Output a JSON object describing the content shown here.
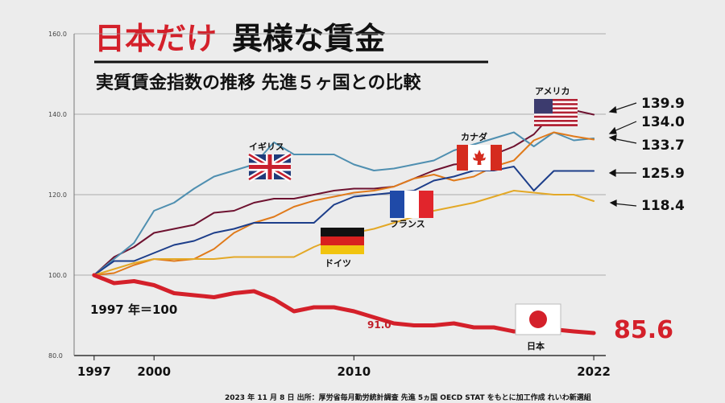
{
  "header": {
    "title_red": "日本だけ",
    "title_black": "異様な賃金",
    "subtitle": "実質賃金指数の推移 先進５ヶ国との比較"
  },
  "base_note": "1997 年＝100",
  "japan_2010_label": "91.0",
  "footer": "2023 年 11 月 8 日 出所：厚労省毎月勤労統計調査 先進 5ヵ国 OECD STAT をもとに加工作成 れいわ新選組",
  "country_labels": {
    "uk": "イギリス",
    "canada": "カナダ",
    "usa": "アメリカ",
    "france": "フランス",
    "germany": "ドイツ",
    "japan": "日本"
  },
  "end_labels": {
    "usa": "139.9",
    "uk": "134.0",
    "canada": "133.7",
    "germany": "125.9",
    "france": "118.4",
    "japan": "85.6"
  },
  "colors": {
    "usa": "#6e1230",
    "uk": "#4f8fb0",
    "canada": "#e07a1a",
    "germany": "#1d3e8a",
    "france": "#e3a826",
    "japan": "#d4202a"
  },
  "chart_data": {
    "type": "line",
    "title": "実質賃金指数の推移 先進５ヶ国との比較",
    "xlabel": "",
    "ylabel": "",
    "xlim": [
      1996,
      2022.6
    ],
    "ylim": [
      80,
      160
    ],
    "yticks": [
      "80.0",
      "100.0",
      "120.0",
      "140.0",
      "160.0"
    ],
    "ytick_values": [
      80,
      100,
      120,
      140,
      160
    ],
    "xticks": [
      "1997",
      "2000",
      "2010",
      "2022"
    ],
    "xtick_values": [
      1997,
      2000,
      2010,
      2022
    ],
    "grid": true,
    "x": [
      1997,
      1998,
      1999,
      2000,
      2001,
      2002,
      2003,
      2004,
      2005,
      2006,
      2007,
      2008,
      2009,
      2010,
      2011,
      2012,
      2013,
      2014,
      2015,
      2016,
      2017,
      2018,
      2019,
      2020,
      2021,
      2022
    ],
    "series": [
      {
        "name": "アメリカ",
        "key": "usa",
        "values": [
          100,
          104.5,
          107,
          110.5,
          111.5,
          112.5,
          115.5,
          116,
          118,
          119,
          119,
          120,
          121,
          121.5,
          121.5,
          122,
          124,
          126,
          127.5,
          128,
          130,
          132,
          135,
          140.5,
          141,
          139.9
        ]
      },
      {
        "name": "イギリス",
        "key": "uk",
        "values": [
          100,
          104,
          108,
          116,
          118,
          121.5,
          124.5,
          126,
          127.5,
          133,
          130,
          130,
          130,
          127.5,
          126,
          126.5,
          127.5,
          128.5,
          131,
          132.5,
          134,
          135.5,
          132,
          135.5,
          133.5,
          134.0
        ]
      },
      {
        "name": "カナダ",
        "key": "canada",
        "values": [
          100,
          100.5,
          102.5,
          104,
          103.5,
          104,
          106.5,
          110.5,
          113,
          114.5,
          117,
          118.5,
          119.5,
          120.5,
          121,
          122,
          124,
          125,
          123.5,
          124.5,
          127,
          128.5,
          133.5,
          135.5,
          134.5,
          133.7
        ]
      },
      {
        "name": "ドイツ",
        "key": "germany",
        "values": [
          100,
          103.5,
          103.5,
          105.5,
          107.5,
          108.5,
          110.5,
          111.5,
          113,
          113,
          113,
          113,
          117.5,
          119.5,
          120,
          120.5,
          121,
          123.5,
          124.5,
          126,
          126,
          127,
          121,
          125.9,
          125.9,
          125.9
        ]
      },
      {
        "name": "フランス",
        "key": "france",
        "values": [
          100,
          101.5,
          103,
          104,
          104,
          104,
          104,
          104.5,
          104.5,
          104.5,
          104.5,
          107,
          109,
          110.5,
          111.5,
          113,
          114.5,
          116,
          117,
          118,
          119.5,
          121,
          120.5,
          120,
          120,
          118.4
        ]
      },
      {
        "name": "日本",
        "key": "japan",
        "values": [
          100,
          98,
          98.5,
          97.5,
          95.5,
          95,
          94.5,
          95.5,
          96,
          94,
          91,
          92,
          92,
          91,
          89.5,
          88,
          87.5,
          87.5,
          88,
          87,
          87,
          86,
          86,
          86.5,
          86,
          85.6
        ]
      }
    ]
  }
}
